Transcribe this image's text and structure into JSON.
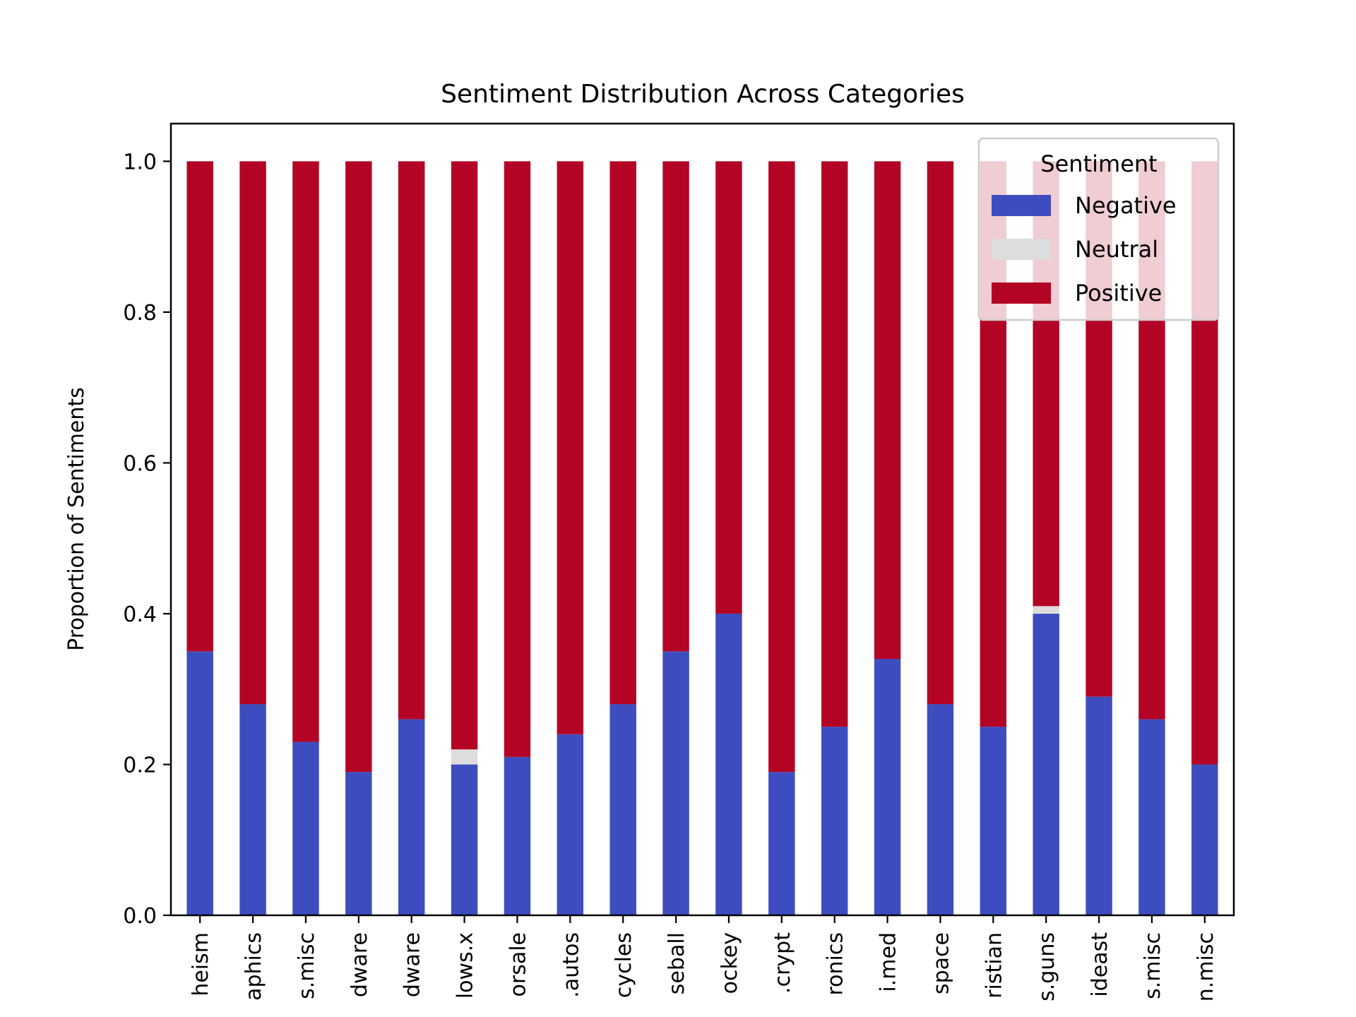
{
  "chart_data": {
    "type": "bar",
    "stacked": true,
    "title": "Sentiment Distribution Across Categories",
    "xlabel": "",
    "ylabel": "Proportion of Sentiments",
    "ylim": [
      0,
      1.05
    ],
    "yticks": [
      "0.0",
      "0.2",
      "0.4",
      "0.6",
      "0.8",
      "1.0"
    ],
    "grid": false,
    "legend": {
      "title": "Sentiment",
      "position": "top-right"
    },
    "categories": [
      "heism",
      "aphics",
      "s.misc",
      "dware",
      "dware",
      "lows.x",
      "orsale",
      ".autos",
      "cycles",
      "seball",
      "ockey",
      ".crypt",
      "ronics",
      "i.med",
      "space",
      "ristian",
      "s.guns",
      "ideast",
      "s.misc",
      "n.misc"
    ],
    "series": [
      {
        "name": "Negative",
        "color": "#3d4dbf",
        "values": [
          0.35,
          0.28,
          0.23,
          0.19,
          0.26,
          0.2,
          0.21,
          0.24,
          0.28,
          0.35,
          0.4,
          0.19,
          0.25,
          0.34,
          0.28,
          0.25,
          0.4,
          0.29,
          0.26,
          0.2
        ]
      },
      {
        "name": "Neutral",
        "color": "#dddddd",
        "values": [
          0,
          0,
          0,
          0,
          0,
          0.02,
          0,
          0,
          0,
          0,
          0,
          0,
          0,
          0,
          0,
          0,
          0.01,
          0,
          0,
          0
        ]
      },
      {
        "name": "Positive",
        "color": "#b40426",
        "values": [
          0.65,
          0.72,
          0.77,
          0.81,
          0.74,
          0.78,
          0.79,
          0.76,
          0.72,
          0.65,
          0.6,
          0.81,
          0.75,
          0.66,
          0.72,
          0.75,
          0.59,
          0.71,
          0.74,
          0.8
        ]
      }
    ]
  }
}
